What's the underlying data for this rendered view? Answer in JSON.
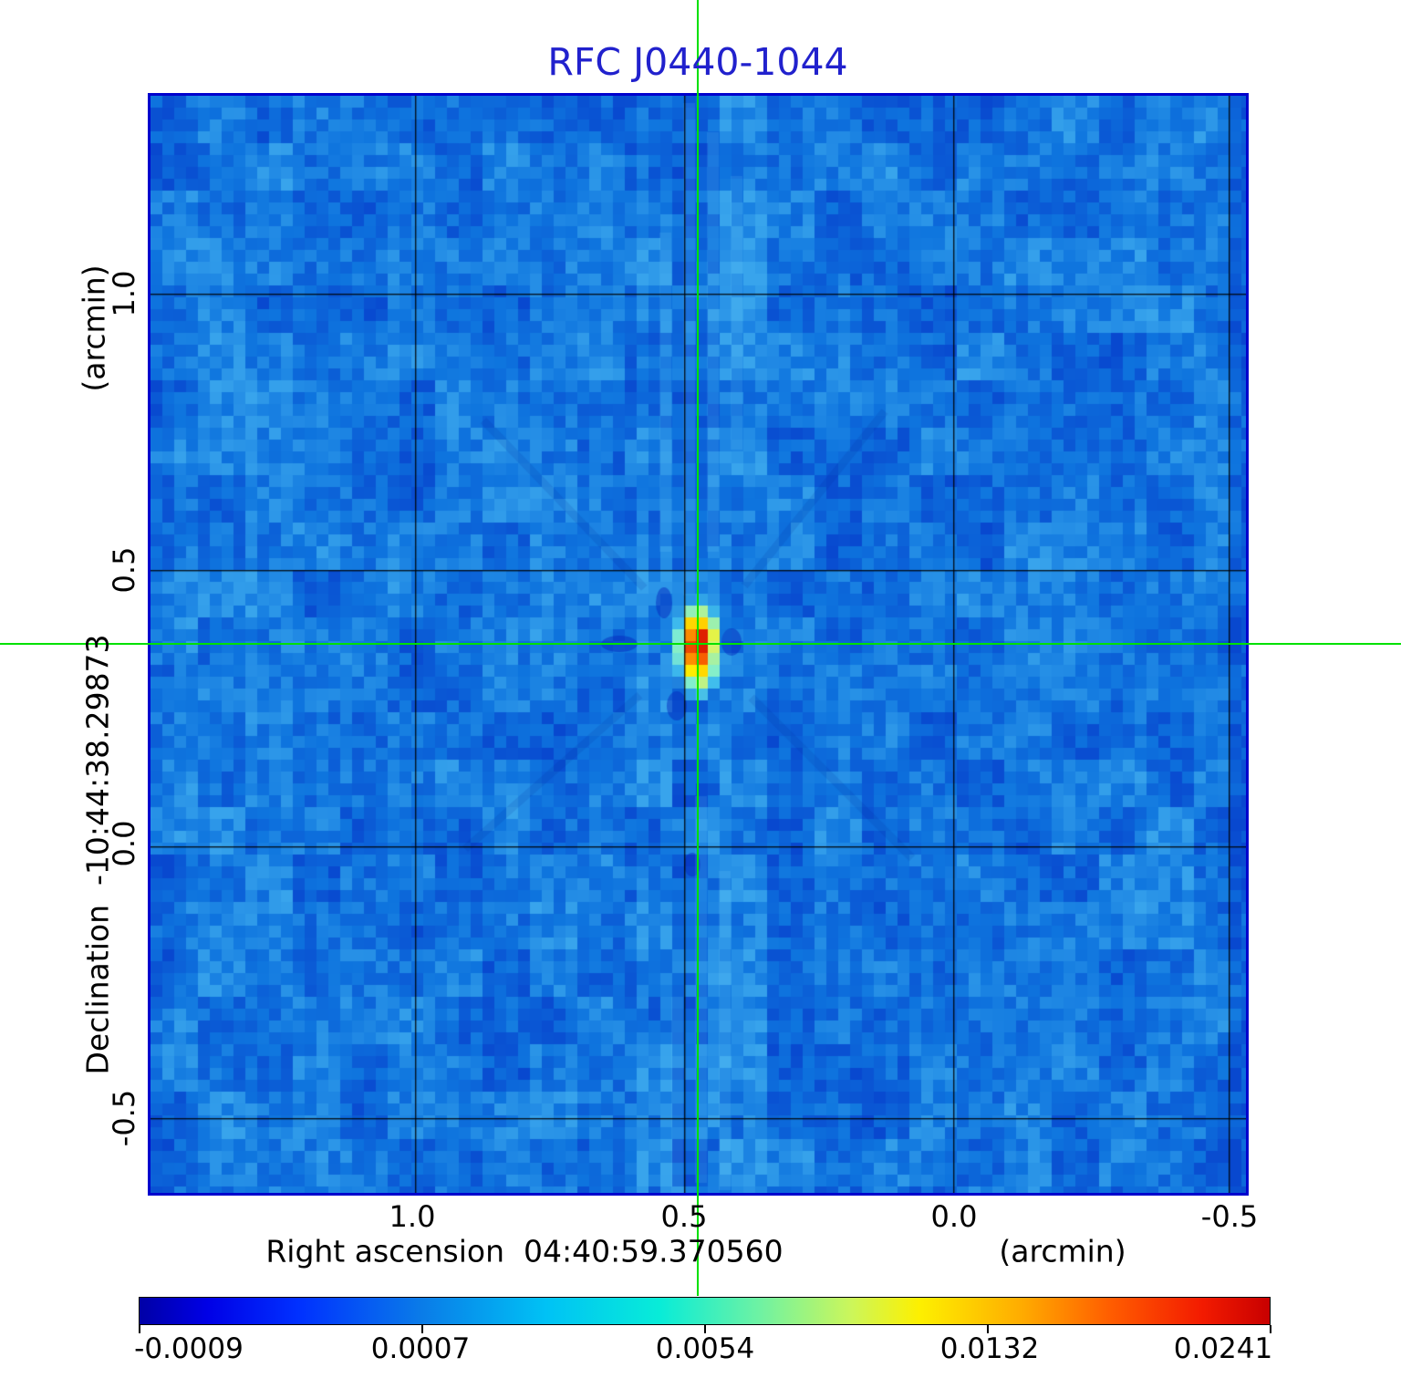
{
  "title": {
    "text": "RFC J0440-1044",
    "color": "#2121cd"
  },
  "x_axis": {
    "title": "Right ascension  04:40:59.370560",
    "unit": "(arcmin)",
    "ticks": [
      "1.0",
      "0.5",
      "0.0",
      "-0.5"
    ]
  },
  "y_axis": {
    "title": "Declination  -10:44:38.29873",
    "unit": "(arcmin)",
    "ticks": [
      "1.0",
      "0.5",
      "0.0",
      "-0.5"
    ]
  },
  "colorbar": {
    "tick_labels": [
      "-0.0009",
      "0.0007",
      "0.0054",
      "0.0132",
      "0.0241"
    ]
  },
  "crosshair": {
    "color": "#00e100"
  },
  "frame_color": "#0000cd",
  "grid_color": "rgba(0,0,0,0.85)",
  "chart_data": {
    "type": "heatmap",
    "title": "RFC J0440-1044",
    "xlabel": "Right ascension  04:40:59.370560 (arcmin)",
    "ylabel": "Declination  -10:44:38.29873 (arcmin)",
    "x_ticks_arcmin": [
      1.0,
      0.5,
      0.0,
      -0.5
    ],
    "y_ticks_arcmin": [
      1.0,
      0.5,
      0.0,
      -0.5
    ],
    "x_range_arcmin": [
      1.49,
      -0.53
    ],
    "y_range_arcmin": [
      1.36,
      -0.62
    ],
    "grid": true,
    "legend_position": "colorbar-bottom",
    "colormap": "jet",
    "intensity_scale": "sqrt",
    "colorbar_ticks": [
      -0.0009,
      0.0007,
      0.0054,
      0.0132,
      0.0241
    ],
    "vmin": -0.0009,
    "vmax": 0.0241,
    "source": {
      "name": "RFC J0440-1044",
      "ra": "04:40:59.370560",
      "dec": "-10:44:38.29873",
      "x_offset_arcmin": 0.47,
      "y_offset_arcmin": 0.37,
      "peak_value": 0.0241,
      "shape": "compact elliptical source elongated north-south at crosshair"
    },
    "background_noise_range": [
      -0.0009,
      0.0015
    ],
    "noise_colors": {
      "dark": "#0848cf",
      "mid": "#0e74de",
      "light": "#38a4ec"
    },
    "colorbar_gradient": [
      [
        0.0,
        "#0000a6"
      ],
      [
        0.06,
        "#0000e6"
      ],
      [
        0.14,
        "#0030ff"
      ],
      [
        0.25,
        "#0a7ce8"
      ],
      [
        0.36,
        "#00c2f5"
      ],
      [
        0.46,
        "#08ecd8"
      ],
      [
        0.55,
        "#70f2a2"
      ],
      [
        0.63,
        "#ccf65a"
      ],
      [
        0.69,
        "#fdf000"
      ],
      [
        0.78,
        "#ffac00"
      ],
      [
        0.86,
        "#ff5c00"
      ],
      [
        0.94,
        "#f31b00"
      ],
      [
        1.0,
        "#c80000"
      ]
    ],
    "source_gradient": [
      [
        0.0,
        [
          144,
          0,
          0,
          1
        ]
      ],
      [
        0.1,
        [
          192,
          0,
          0,
          1
        ]
      ],
      [
        0.2,
        [
          230,
          40,
          0,
          1
        ]
      ],
      [
        0.3,
        [
          251,
          109,
          0,
          1
        ]
      ],
      [
        0.4,
        [
          255,
          196,
          0,
          1
        ]
      ],
      [
        0.49,
        [
          254,
          240,
          0,
          1
        ]
      ],
      [
        0.58,
        [
          216,
          244,
          104,
          1
        ]
      ],
      [
        0.68,
        [
          125,
          238,
          210,
          1
        ]
      ],
      [
        0.8,
        [
          68,
          196,
          238,
          0.9
        ]
      ],
      [
        0.92,
        [
          47,
          156,
          228,
          0.45
        ]
      ],
      [
        1.0,
        [
          20,
          120,
          220,
          0
        ]
      ]
    ]
  }
}
